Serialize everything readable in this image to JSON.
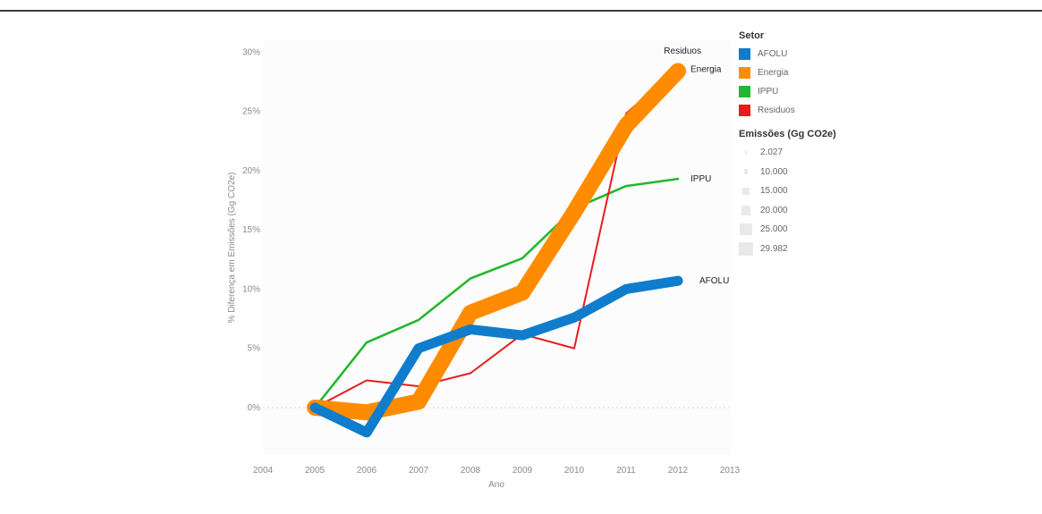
{
  "chart_data": {
    "type": "line",
    "xlabel": "Ano",
    "ylabel": "% Diferença em Emissões (Gg CO2e)",
    "x": [
      2005,
      2006,
      2007,
      2008,
      2009,
      2010,
      2011,
      2012
    ],
    "xlim": [
      2004,
      2013
    ],
    "x_ticks": [
      "2004",
      "2005",
      "2006",
      "2007",
      "2008",
      "2009",
      "2010",
      "2011",
      "2012",
      "2013"
    ],
    "ylim": [
      -4,
      31
    ],
    "y_ticks": [
      {
        "value": 0,
        "label": "0%"
      },
      {
        "value": 5,
        "label": "5%"
      },
      {
        "value": 10,
        "label": "10%"
      },
      {
        "value": 15,
        "label": "15%"
      },
      {
        "value": 20,
        "label": "20%"
      },
      {
        "value": 25,
        "label": "25%"
      },
      {
        "value": 30,
        "label": "30%"
      }
    ],
    "series": [
      {
        "name": "IPPU",
        "color": "#22b82e",
        "weight": 3000,
        "values": [
          0,
          5.5,
          7.4,
          10.9,
          12.6,
          16.8,
          18.7,
          19.3
        ],
        "end_label": "IPPU"
      },
      {
        "name": "Residuos",
        "color": "#e81c1c",
        "weight": 2027,
        "values": [
          0,
          2.3,
          1.8,
          2.9,
          6.2,
          5.0,
          24.8,
          28.8
        ],
        "end_label": "Residuos"
      },
      {
        "name": "Energia",
        "color": "#ff8c00",
        "weight": 29982,
        "values": [
          0,
          -0.4,
          0.5,
          8.0,
          9.7,
          16.5,
          23.8,
          28.4
        ],
        "end_label": "Energia"
      },
      {
        "name": "AFOLU",
        "color": "#0f7dcc",
        "weight": 18000,
        "values": [
          0,
          -2.1,
          5.0,
          6.6,
          6.1,
          7.6,
          10.0,
          10.7
        ],
        "end_label": "AFOLU"
      }
    ],
    "grid": false,
    "legend_position": "right"
  },
  "legend": {
    "color_title": "Setor",
    "color_items": [
      {
        "label": "AFOLU",
        "color": "#0f7dcc"
      },
      {
        "label": "Energia",
        "color": "#ff8c00"
      },
      {
        "label": "IPPU",
        "color": "#22b82e"
      },
      {
        "label": "Residuos",
        "color": "#e81c1c"
      }
    ],
    "size_title": "Emissões (Gg CO2e)",
    "size_items": [
      "2.027",
      "10.000",
      "15.000",
      "20.000",
      "25.000",
      "29.982"
    ]
  }
}
